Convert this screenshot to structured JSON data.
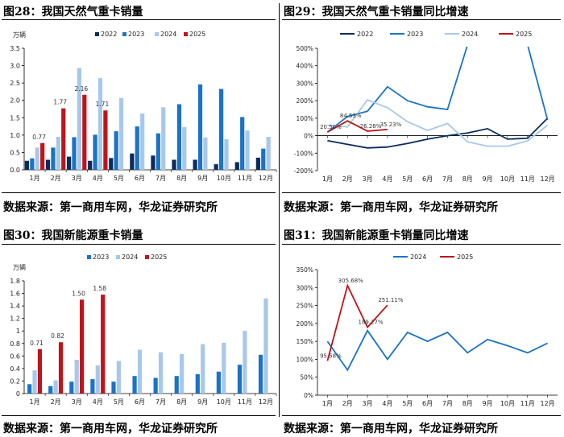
{
  "panels": [
    {
      "title": "图28：我国天然气重卡销量",
      "source": "数据来源：第一商用车网，华龙证券研究所"
    },
    {
      "title": "图29：我国天然气重卡销量同比增速",
      "source": "数据来源：第一商用车网，华龙证券研究所"
    },
    {
      "title": "图30：我国新能源重卡销量",
      "source": "数据来源：第一商用车网，华龙证券研究所"
    },
    {
      "title": "图31：我国新能源重卡销量同比增速",
      "source": "数据来源：第一商用车网，华龙证券研究所"
    }
  ],
  "chart_data": [
    {
      "type": "bar",
      "ylabel": "万辆",
      "categories": [
        "1月",
        "2月",
        "3月",
        "4月",
        "5月",
        "6月",
        "7月",
        "8月",
        "9月",
        "10月",
        "11月",
        "12月"
      ],
      "ylim": [
        0,
        3.5
      ],
      "yticks": [
        "0.0",
        "0.5",
        "1.0",
        "1.5",
        "2.0",
        "2.5",
        "3.0",
        "3.5"
      ],
      "series": [
        {
          "name": "2022",
          "color": "#0b2b5c",
          "values": [
            0.26,
            0.29,
            0.38,
            0.26,
            0.34,
            0.47,
            0.41,
            0.29,
            0.29,
            0.16,
            0.22,
            0.35
          ]
        },
        {
          "name": "2023",
          "color": "#1a73c8",
          "values": [
            0.33,
            0.64,
            0.94,
            1.01,
            1.11,
            1.25,
            1.05,
            1.89,
            2.46,
            2.33,
            1.52,
            0.61
          ]
        },
        {
          "name": "2024",
          "color": "#a7c8ea",
          "values": [
            0.64,
            0.95,
            2.93,
            2.64,
            2.07,
            1.62,
            1.8,
            1.23,
            0.93,
            0.88,
            1.13,
            0.95
          ]
        },
        {
          "name": "2025",
          "color": "#c0141b",
          "values": [
            0.77,
            1.77,
            2.16,
            1.71,
            null,
            null,
            null,
            null,
            null,
            null,
            null,
            null
          ]
        }
      ],
      "data_labels": [
        "0.77",
        "1.77",
        "2.16",
        "1.71"
      ]
    },
    {
      "type": "line",
      "categories": [
        "1月",
        "2月",
        "3月",
        "4月",
        "5月",
        "6月",
        "7月",
        "8月",
        "9月",
        "10月",
        "11月",
        "12月"
      ],
      "ylim": [
        -200,
        500
      ],
      "yticks": [
        "-200%",
        "-100%",
        "0%",
        "100%",
        "200%",
        "300%",
        "400%",
        "500%"
      ],
      "series": [
        {
          "name": "2022",
          "color": "#0b2b5c",
          "values": [
            -28,
            -50,
            -70,
            -65,
            -45,
            -20,
            0,
            15,
            40,
            -20,
            -15,
            100
          ]
        },
        {
          "name": "2023",
          "color": "#1a73c8",
          "values": [
            20,
            110,
            140,
            280,
            200,
            165,
            150,
            520,
            null,
            null,
            520,
            90
          ]
        },
        {
          "name": "2024",
          "color": "#a7c8ea",
          "values": [
            60,
            50,
            205,
            160,
            80,
            30,
            70,
            -35,
            -60,
            -60,
            -30,
            60
          ]
        },
        {
          "name": "2025",
          "color": "#c0141b",
          "values": [
            20.5,
            84.5,
            26.28,
            35.23,
            null,
            null,
            null,
            null,
            null,
            null,
            null,
            null
          ]
        }
      ],
      "data_labels": [
        "20.50%",
        "84.53%",
        "26.28%",
        "35.23%"
      ]
    },
    {
      "type": "bar",
      "ylabel": "万辆",
      "categories": [
        "1月",
        "2月",
        "3月",
        "4月",
        "5月",
        "6月",
        "7月",
        "8月",
        "9月",
        "10月",
        "11月",
        "12月"
      ],
      "ylim": [
        0,
        1.8
      ],
      "yticks": [
        "0",
        "0.2",
        "0.4",
        "0.6",
        "0.8",
        "1",
        "1.2",
        "1.4",
        "1.6",
        "1.8"
      ],
      "series": [
        {
          "name": "2023",
          "color": "#1a73c8",
          "values": [
            0.15,
            0.12,
            0.19,
            0.23,
            0.19,
            0.28,
            0.25,
            0.28,
            0.31,
            0.35,
            0.46,
            0.62
          ]
        },
        {
          "name": "2024",
          "color": "#a7c8ea",
          "values": [
            0.37,
            0.21,
            0.54,
            0.45,
            0.52,
            0.7,
            0.66,
            0.63,
            0.79,
            0.81,
            1.0,
            1.52
          ]
        },
        {
          "name": "2025",
          "color": "#c0141b",
          "values": [
            0.71,
            0.82,
            1.5,
            1.58,
            null,
            null,
            null,
            null,
            null,
            null,
            null,
            null
          ]
        }
      ],
      "data_labels": [
        "0.71",
        "0.82",
        "1.50",
        "1.58"
      ]
    },
    {
      "type": "line",
      "categories": [
        "1月",
        "2月",
        "3月",
        "4月",
        "5月",
        "6月",
        "7月",
        "8月",
        "9月",
        "10月",
        "11月",
        "12月"
      ],
      "ylim": [
        0,
        350
      ],
      "yticks": [
        "0%",
        "50%",
        "100%",
        "150%",
        "200%",
        "250%",
        "300%",
        "350%"
      ],
      "series": [
        {
          "name": "2024",
          "color": "#1a73c8",
          "values": [
            150,
            70,
            180,
            100,
            175,
            150,
            175,
            118,
            155,
            138,
            118,
            145
          ]
        },
        {
          "name": "2025",
          "color": "#c0141b",
          "values": [
            95.58,
            305.68,
            189.27,
            251.11,
            null,
            null,
            null,
            null,
            null,
            null,
            null,
            null
          ]
        }
      ],
      "data_labels": [
        "95.58%",
        "305.68%",
        "189.27%",
        "251.11%"
      ]
    }
  ]
}
